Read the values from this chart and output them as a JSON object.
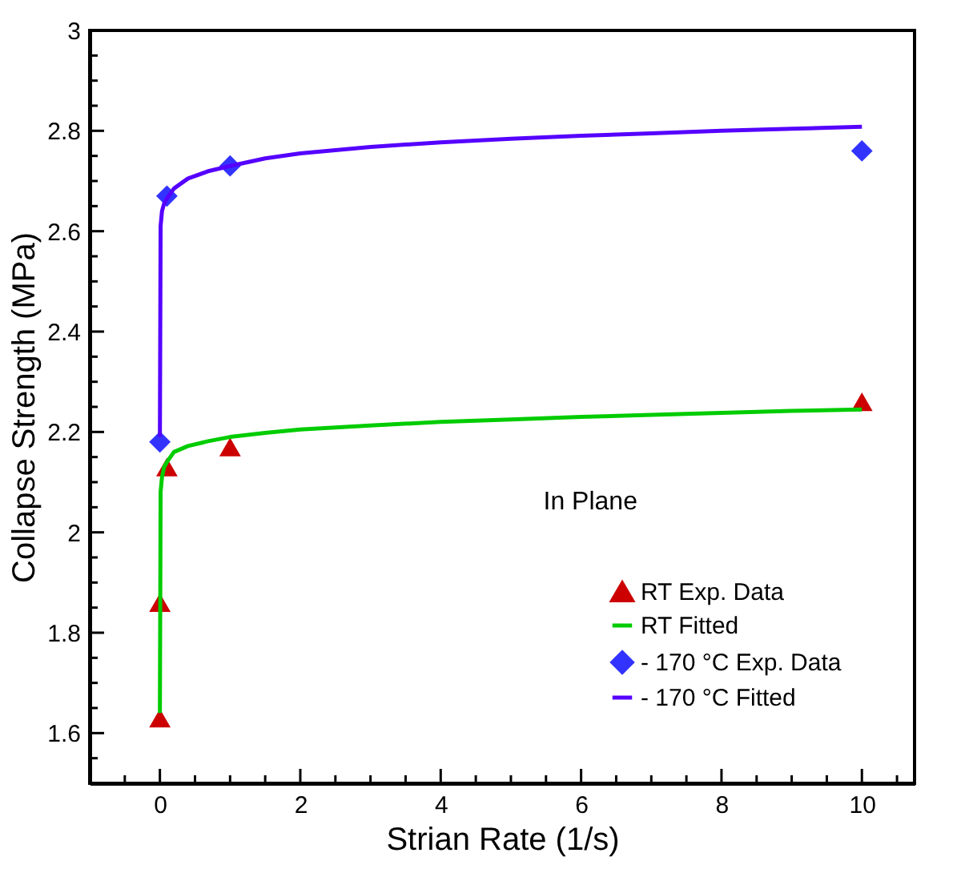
{
  "chart_data": {
    "type": "scatter",
    "xlabel": "Strian Rate (1/s)",
    "ylabel": "Collapse Strength (MPa)",
    "xlim": [
      -1,
      10.75
    ],
    "xticks": [
      0,
      {
        "value": 0.5,
        "label": null
      },
      {
        "value": 1,
        "label": null
      },
      {
        "value": 1.5,
        "label": null
      },
      2,
      {
        "value": 2.5,
        "label": null
      },
      {
        "value": 3,
        "label": null
      },
      {
        "value": 3.5,
        "label": null
      },
      4,
      {
        "value": 4.5,
        "label": null
      },
      {
        "value": 5,
        "label": null
      },
      {
        "value": 5.5,
        "label": null
      },
      6,
      {
        "value": 6.5,
        "label": null
      },
      {
        "value": 7,
        "label": null
      },
      {
        "value": 7.5,
        "label": null
      },
      8,
      {
        "value": 8.5,
        "label": null
      },
      {
        "value": 9,
        "label": null
      },
      {
        "value": 9.5,
        "label": null
      },
      10,
      {
        "value": -0.5,
        "label": null
      },
      {
        "value": 10.5,
        "label": null
      }
    ],
    "ylim": [
      1.5,
      3
    ],
    "yticks": [
      1.6,
      1.8,
      {
        "value": 2,
        "label": "2"
      },
      2.2,
      2.4,
      2.6,
      2.8,
      {
        "value": 3,
        "label": "3"
      },
      {
        "value": 1.55,
        "label": null
      },
      {
        "value": 1.65,
        "label": null
      },
      {
        "value": 1.7,
        "label": null
      },
      {
        "value": 1.75,
        "label": null
      },
      {
        "value": 1.85,
        "label": null
      },
      {
        "value": 1.9,
        "label": null
      },
      {
        "value": 1.95,
        "label": null
      },
      {
        "value": 2.05,
        "label": null
      },
      {
        "value": 2.1,
        "label": null
      },
      {
        "value": 2.15,
        "label": null
      },
      {
        "value": 2.25,
        "label": null
      },
      {
        "value": 2.3,
        "label": null
      },
      {
        "value": 2.35,
        "label": null
      },
      {
        "value": 2.45,
        "label": null
      },
      {
        "value": 2.5,
        "label": null
      },
      {
        "value": 2.55,
        "label": null
      },
      {
        "value": 2.65,
        "label": null
      },
      {
        "value": 2.7,
        "label": null
      },
      {
        "value": 2.75,
        "label": null
      },
      {
        "value": 2.85,
        "label": null
      },
      {
        "value": 2.9,
        "label": null
      },
      {
        "value": 2.95,
        "label": null
      }
    ],
    "grid": false,
    "legend": "bottom right",
    "annotations": [
      "In Plane"
    ],
    "series": [
      {
        "name": "RT Exp. Data",
        "type": "scatter",
        "marker": "triangle",
        "color": "#cc0000",
        "x": [
          0,
          0,
          0.1,
          1,
          10
        ],
        "values": [
          1.63,
          1.86,
          2.13,
          2.17,
          2.26
        ]
      },
      {
        "name": "RT Fitted",
        "type": "line",
        "marker": "none",
        "color": "#00cc00",
        "x": [
          0,
          0.01,
          0.03,
          0.06,
          0.1,
          0.2,
          0.4,
          0.7,
          1,
          1.5,
          2,
          3,
          4,
          5,
          6,
          7,
          8,
          9,
          10
        ],
        "values": [
          1.64,
          2.08,
          2.11,
          2.13,
          2.14,
          2.16,
          2.172,
          2.182,
          2.19,
          2.198,
          2.205,
          2.213,
          2.22,
          2.225,
          2.23,
          2.234,
          2.238,
          2.242,
          2.245
        ]
      },
      {
        "name": "- 170 °C Exp. Data",
        "type": "scatter",
        "marker": "diamond",
        "color": "#3333ff",
        "x": [
          0,
          0.1,
          1,
          10
        ],
        "values": [
          2.18,
          2.67,
          2.73,
          2.76
        ]
      },
      {
        "name": "- 170 °C Fitted",
        "type": "line",
        "marker": "none",
        "color": "#5500ff",
        "x": [
          0,
          0.01,
          0.03,
          0.06,
          0.1,
          0.2,
          0.4,
          0.7,
          1,
          1.5,
          2,
          3,
          4,
          5,
          6,
          7,
          8,
          9,
          10
        ],
        "values": [
          2.19,
          2.61,
          2.64,
          2.655,
          2.665,
          2.685,
          2.705,
          2.72,
          2.73,
          2.745,
          2.755,
          2.768,
          2.777,
          2.784,
          2.79,
          2.795,
          2.8,
          2.804,
          2.808
        ]
      }
    ]
  }
}
